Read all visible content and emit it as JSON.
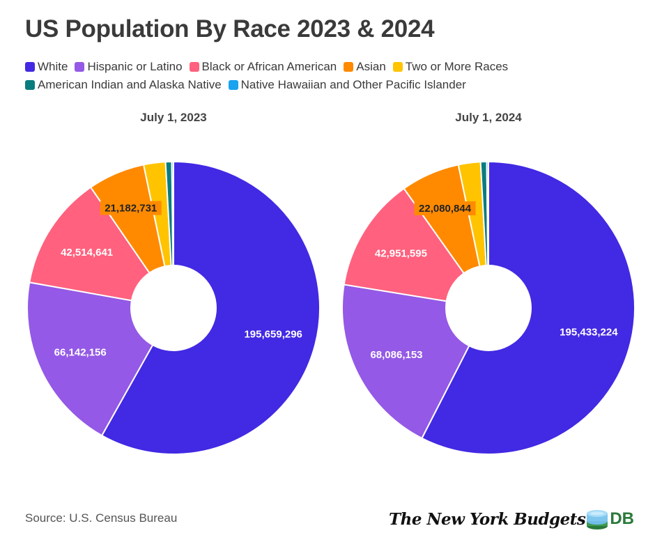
{
  "title": "US Population By Race 2023 & 2024",
  "legend": [
    {
      "label": "White",
      "color": "#4229e3"
    },
    {
      "label": "Hispanic or Latino",
      "color": "#9459e6"
    },
    {
      "label": "Black or African American",
      "color": "#ff617e"
    },
    {
      "label": "Asian",
      "color": "#ff8a00"
    },
    {
      "label": "Two or More Races",
      "color": "#ffc300"
    },
    {
      "label": "American Indian and Alaska Native",
      "color": "#0a7c7e"
    },
    {
      "label": "Native Hawaiian and Other Pacific Islander",
      "color": "#1aa3f0"
    }
  ],
  "chart_data": [
    {
      "type": "pie",
      "title": "July 1, 2023",
      "categories": [
        "White",
        "Hispanic or Latino",
        "Black or African American",
        "Asian",
        "Two or More Races",
        "American Indian and Alaska Native",
        "Native Hawaiian and Other Pacific Islander"
      ],
      "values": [
        195659296,
        66142156,
        42514641,
        21182731,
        8100000,
        2300000,
        620000
      ],
      "labels": [
        "195,659,296",
        "66,142,156",
        "42,514,641",
        "21,182,731",
        "",
        "",
        ""
      ]
    },
    {
      "type": "pie",
      "title": "July 1, 2024",
      "categories": [
        "White",
        "Hispanic or Latino",
        "Black or African American",
        "Asian",
        "Two or More Races",
        "American Indian and Alaska Native",
        "Native Hawaiian and Other Pacific Islander"
      ],
      "values": [
        195433224,
        68086153,
        42951595,
        22080844,
        8300000,
        2300000,
        630000
      ],
      "labels": [
        "195,433,224",
        "68,086,153",
        "42,951,595",
        "22,080,844",
        "",
        "",
        ""
      ]
    }
  ],
  "source": "Source: U.S. Census Bureau",
  "brand": {
    "name": "The New York Budgets",
    "suffix": "DB"
  }
}
